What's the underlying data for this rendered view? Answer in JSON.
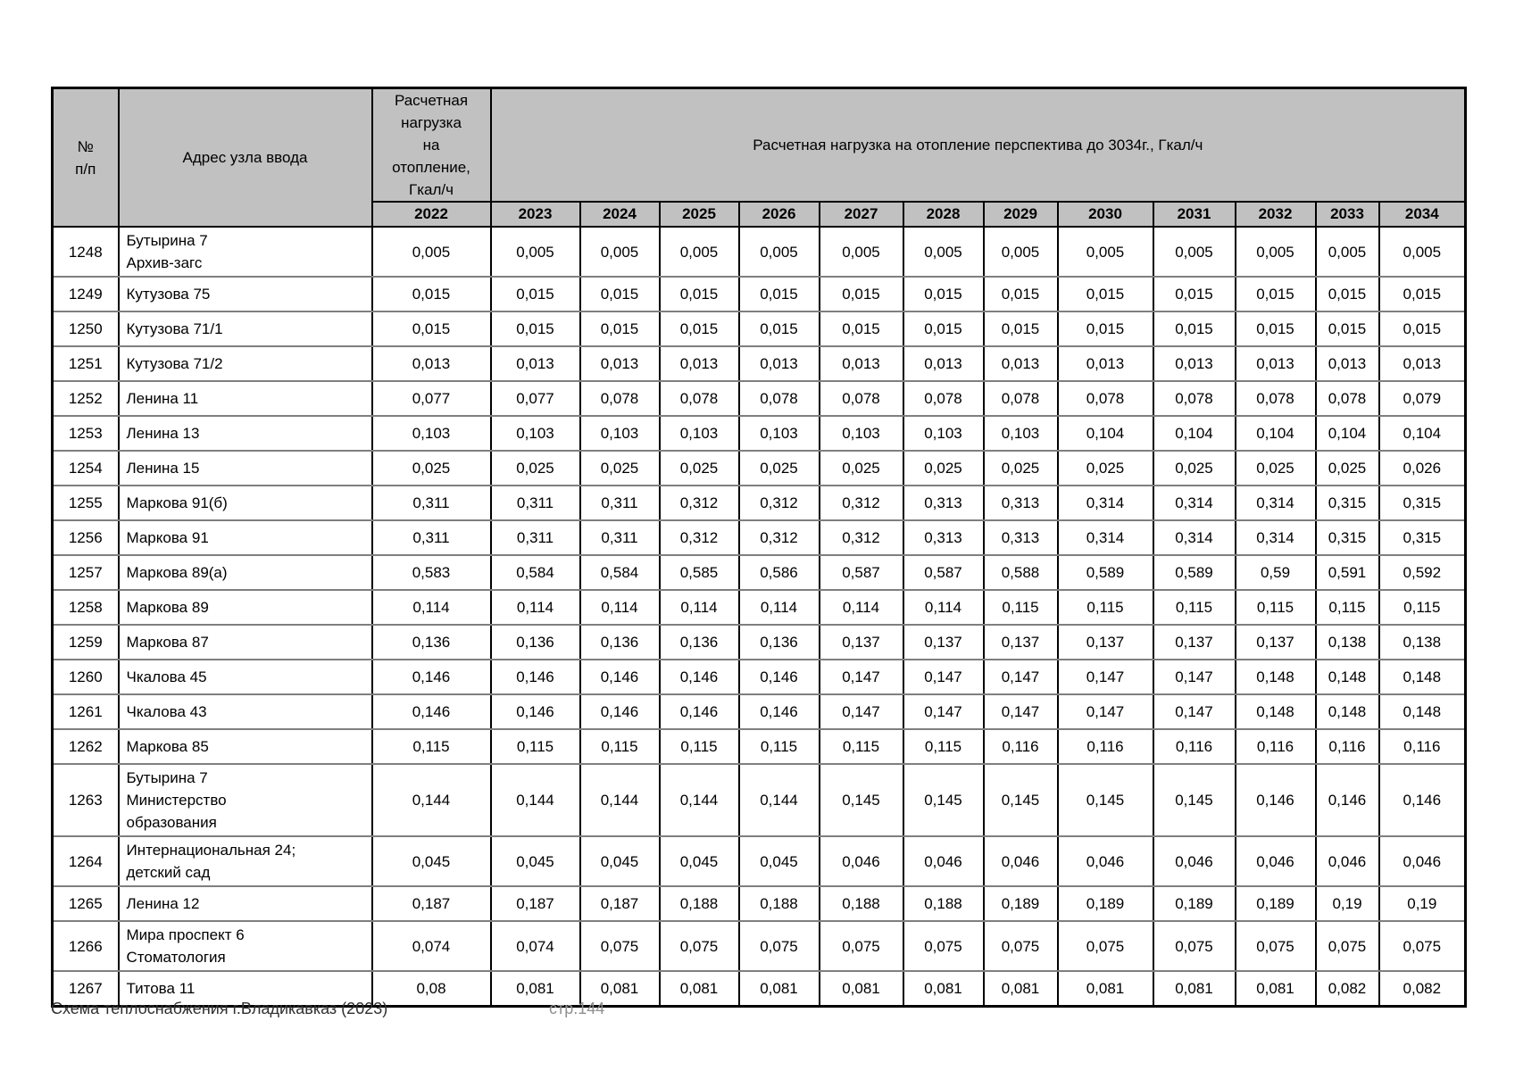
{
  "colors": {
    "header_bg": "#c1c1c1",
    "border_black": "#000000",
    "row_divider_gray": "#7f7f7f",
    "footer_page_gray": "#909090"
  },
  "table": {
    "header": {
      "no": "№\nп/п",
      "address": "Адрес узла ввода",
      "load_2022": "Расчетная\nнагрузка\nна\nотопление,\nГкал/ч",
      "perspective": "Расчетная нагрузка на отопление перспектива до 3034г., Гкал/ч"
    },
    "years": [
      "2022",
      "2023",
      "2024",
      "2025",
      "2026",
      "2027",
      "2028",
      "2029",
      "2030",
      "2031",
      "2032",
      "2033",
      "2034"
    ],
    "rows": [
      {
        "no": "1248",
        "address": "Бутырина 7\nАрхив-загс",
        "values": [
          "0,005",
          "0,005",
          "0,005",
          "0,005",
          "0,005",
          "0,005",
          "0,005",
          "0,005",
          "0,005",
          "0,005",
          "0,005",
          "0,005",
          "0,005"
        ]
      },
      {
        "no": "1249",
        "address": "Кутузова 75",
        "values": [
          "0,015",
          "0,015",
          "0,015",
          "0,015",
          "0,015",
          "0,015",
          "0,015",
          "0,015",
          "0,015",
          "0,015",
          "0,015",
          "0,015",
          "0,015"
        ]
      },
      {
        "no": "1250",
        "address": "Кутузова 71/1",
        "values": [
          "0,015",
          "0,015",
          "0,015",
          "0,015",
          "0,015",
          "0,015",
          "0,015",
          "0,015",
          "0,015",
          "0,015",
          "0,015",
          "0,015",
          "0,015"
        ]
      },
      {
        "no": "1251",
        "address": "Кутузова 71/2",
        "values": [
          "0,013",
          "0,013",
          "0,013",
          "0,013",
          "0,013",
          "0,013",
          "0,013",
          "0,013",
          "0,013",
          "0,013",
          "0,013",
          "0,013",
          "0,013"
        ]
      },
      {
        "no": "1252",
        "address": "Ленина 11",
        "values": [
          "0,077",
          "0,077",
          "0,078",
          "0,078",
          "0,078",
          "0,078",
          "0,078",
          "0,078",
          "0,078",
          "0,078",
          "0,078",
          "0,078",
          "0,079"
        ]
      },
      {
        "no": "1253",
        "address": "Ленина 13",
        "values": [
          "0,103",
          "0,103",
          "0,103",
          "0,103",
          "0,103",
          "0,103",
          "0,103",
          "0,103",
          "0,104",
          "0,104",
          "0,104",
          "0,104",
          "0,104"
        ]
      },
      {
        "no": "1254",
        "address": "Ленина 15",
        "values": [
          "0,025",
          "0,025",
          "0,025",
          "0,025",
          "0,025",
          "0,025",
          "0,025",
          "0,025",
          "0,025",
          "0,025",
          "0,025",
          "0,025",
          "0,026"
        ]
      },
      {
        "no": "1255",
        "address": "Маркова 91(б)",
        "values": [
          "0,311",
          "0,311",
          "0,311",
          "0,312",
          "0,312",
          "0,312",
          "0,313",
          "0,313",
          "0,314",
          "0,314",
          "0,314",
          "0,315",
          "0,315"
        ]
      },
      {
        "no": "1256",
        "address": "Маркова 91",
        "values": [
          "0,311",
          "0,311",
          "0,311",
          "0,312",
          "0,312",
          "0,312",
          "0,313",
          "0,313",
          "0,314",
          "0,314",
          "0,314",
          "0,315",
          "0,315"
        ]
      },
      {
        "no": "1257",
        "address": "Маркова 89(а)",
        "values": [
          "0,583",
          "0,584",
          "0,584",
          "0,585",
          "0,586",
          "0,587",
          "0,587",
          "0,588",
          "0,589",
          "0,589",
          "0,59",
          "0,591",
          "0,592"
        ]
      },
      {
        "no": "1258",
        "address": "Маркова 89",
        "values": [
          "0,114",
          "0,114",
          "0,114",
          "0,114",
          "0,114",
          "0,114",
          "0,114",
          "0,115",
          "0,115",
          "0,115",
          "0,115",
          "0,115",
          "0,115"
        ]
      },
      {
        "no": "1259",
        "address": "Маркова 87",
        "values": [
          "0,136",
          "0,136",
          "0,136",
          "0,136",
          "0,136",
          "0,137",
          "0,137",
          "0,137",
          "0,137",
          "0,137",
          "0,137",
          "0,138",
          "0,138"
        ]
      },
      {
        "no": "1260",
        "address": "Чкалова 45",
        "values": [
          "0,146",
          "0,146",
          "0,146",
          "0,146",
          "0,146",
          "0,147",
          "0,147",
          "0,147",
          "0,147",
          "0,147",
          "0,148",
          "0,148",
          "0,148"
        ]
      },
      {
        "no": "1261",
        "address": "Чкалова 43",
        "values": [
          "0,146",
          "0,146",
          "0,146",
          "0,146",
          "0,146",
          "0,147",
          "0,147",
          "0,147",
          "0,147",
          "0,147",
          "0,148",
          "0,148",
          "0,148"
        ]
      },
      {
        "no": "1262",
        "address": "Маркова 85",
        "values": [
          "0,115",
          "0,115",
          "0,115",
          "0,115",
          "0,115",
          "0,115",
          "0,115",
          "0,116",
          "0,116",
          "0,116",
          "0,116",
          "0,116",
          "0,116"
        ]
      },
      {
        "no": "1263",
        "address": "Бутырина 7\nМинистерство\nобразования",
        "values": [
          "0,144",
          "0,144",
          "0,144",
          "0,144",
          "0,144",
          "0,145",
          "0,145",
          "0,145",
          "0,145",
          "0,145",
          "0,146",
          "0,146",
          "0,146"
        ]
      },
      {
        "no": "1264",
        "address": "Интернациональная 24;\nдетский сад",
        "values": [
          "0,045",
          "0,045",
          "0,045",
          "0,045",
          "0,045",
          "0,046",
          "0,046",
          "0,046",
          "0,046",
          "0,046",
          "0,046",
          "0,046",
          "0,046"
        ]
      },
      {
        "no": "1265",
        "address": "Ленина 12",
        "values": [
          "0,187",
          "0,187",
          "0,187",
          "0,188",
          "0,188",
          "0,188",
          "0,188",
          "0,189",
          "0,189",
          "0,189",
          "0,189",
          "0,19",
          "0,19"
        ]
      },
      {
        "no": "1266",
        "address": "Мира проспект 6\nСтоматология",
        "values": [
          "0,074",
          "0,074",
          "0,075",
          "0,075",
          "0,075",
          "0,075",
          "0,075",
          "0,075",
          "0,075",
          "0,075",
          "0,075",
          "0,075",
          "0,075"
        ]
      },
      {
        "no": "1267",
        "address": "Титова 11",
        "values": [
          "0,08",
          "0,081",
          "0,081",
          "0,081",
          "0,081",
          "0,081",
          "0,081",
          "0,081",
          "0,081",
          "0,081",
          "0,081",
          "0,082",
          "0,082"
        ]
      }
    ]
  },
  "footer": {
    "title": "Схема теплоснабжения г.Владикавказ (2023)",
    "page": "стр.144"
  }
}
